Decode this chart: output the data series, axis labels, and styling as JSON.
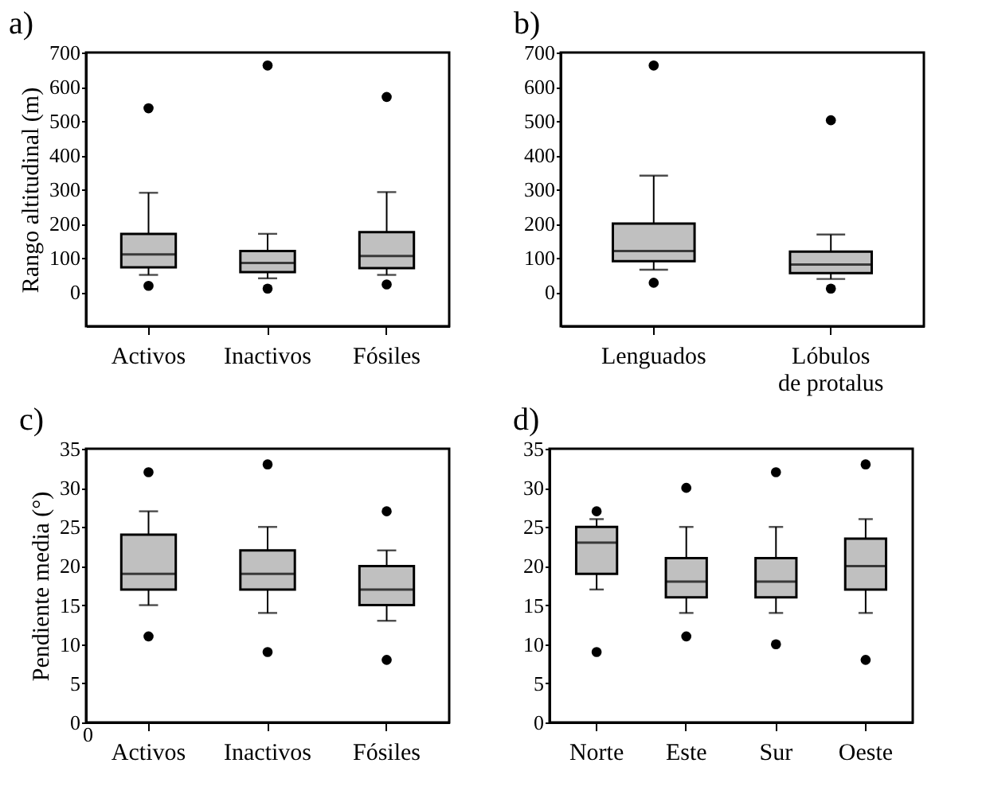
{
  "chart_data": [
    {
      "type": "box",
      "title": "a)",
      "ylabel": "Rango altitudinal (m)",
      "categories": [
        "Activos",
        "Inactivos",
        "Fósiles"
      ],
      "ylim": [
        -100,
        700
      ],
      "yticks": [
        0,
        100,
        200,
        300,
        400,
        500,
        600,
        700
      ],
      "grid": false,
      "color": "#c0c0c0",
      "boxes": [
        {
          "low": 50,
          "q1": 72,
          "median": 110,
          "q3": 170,
          "high": 290,
          "outliers": [
            18,
            537
          ]
        },
        {
          "low": 40,
          "q1": 58,
          "median": 85,
          "q3": 120,
          "high": 170,
          "outliers": [
            10,
            662
          ]
        },
        {
          "low": 50,
          "q1": 70,
          "median": 105,
          "q3": 175,
          "high": 292,
          "outliers": [
            22,
            570
          ]
        }
      ]
    },
    {
      "type": "box",
      "title": "b)",
      "categories": [
        "Lenguados",
        "Lóbulos\nde protalus"
      ],
      "ylim": [
        -100,
        700
      ],
      "yticks": [
        0,
        100,
        200,
        300,
        400,
        500,
        600,
        700
      ],
      "grid": false,
      "color": "#c0c0c0",
      "boxes": [
        {
          "low": 65,
          "q1": 90,
          "median": 120,
          "q3": 200,
          "high": 340,
          "outliers": [
            27,
            662
          ]
        },
        {
          "low": 38,
          "q1": 55,
          "median": 80,
          "q3": 118,
          "high": 168,
          "outliers": [
            10,
            502
          ]
        }
      ]
    },
    {
      "type": "box",
      "title": "c)",
      "ylabel": "Pendiente media (°)",
      "categories": [
        "Activos",
        "Inactivos",
        "Fósiles"
      ],
      "ylim": [
        0,
        35
      ],
      "yticks": [
        0,
        5,
        10,
        15,
        20,
        25,
        30,
        35
      ],
      "grid": false,
      "color": "#c0c0c0",
      "annotations": [
        "0"
      ],
      "boxes": [
        {
          "low": 15,
          "q1": 17,
          "median": 19,
          "q3": 24,
          "high": 27,
          "outliers": [
            11,
            32
          ]
        },
        {
          "low": 14,
          "q1": 17,
          "median": 19,
          "q3": 22,
          "high": 25,
          "outliers": [
            9,
            33
          ]
        },
        {
          "low": 13,
          "q1": 15,
          "median": 17,
          "q3": 20,
          "high": 22,
          "outliers": [
            8,
            27
          ]
        }
      ]
    },
    {
      "type": "box",
      "title": "d)",
      "categories": [
        "Norte",
        "Este",
        "Sur",
        "Oeste"
      ],
      "ylim": [
        0,
        35
      ],
      "yticks": [
        0,
        5,
        10,
        15,
        20,
        25,
        30,
        35
      ],
      "grid": false,
      "color": "#c0c0c0",
      "boxes": [
        {
          "low": 17,
          "q1": 19,
          "median": 23,
          "q3": 25,
          "high": 26,
          "outliers": [
            9,
            27
          ]
        },
        {
          "low": 14,
          "q1": 16,
          "median": 18,
          "q3": 21,
          "high": 25,
          "outliers": [
            11,
            30
          ]
        },
        {
          "low": 14,
          "q1": 16,
          "median": 18,
          "q3": 21,
          "high": 25,
          "outliers": [
            10,
            32
          ]
        },
        {
          "low": 14,
          "q1": 17,
          "median": 20,
          "q3": 23.5,
          "high": 26,
          "outliers": [
            8,
            33
          ]
        }
      ]
    }
  ]
}
